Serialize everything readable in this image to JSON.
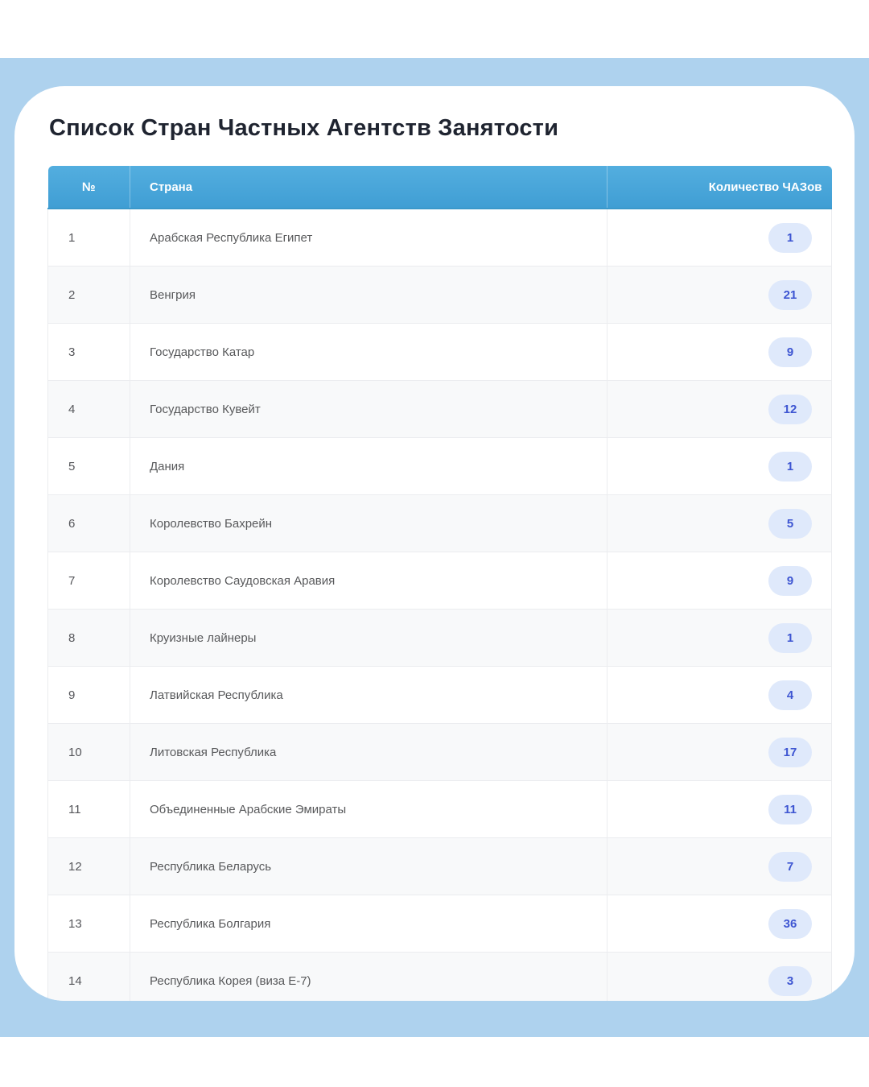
{
  "page": {
    "title": "Список Стран Частных Агентств Занятости"
  },
  "theme": {
    "panel_background": "#aed2ee",
    "card_background": "#ffffff",
    "header_blue_top": "#53aedf",
    "header_blue_bottom": "#409ed4",
    "header_text": "#ffffff",
    "row_text": "#58595b",
    "row_alt_background": "#f8f9fa",
    "badge_background": "#dfe9fb",
    "badge_text": "#3d55d2",
    "title_text": "#1f2430"
  },
  "table": {
    "columns": [
      {
        "key": "num",
        "label": "№"
      },
      {
        "key": "country",
        "label": "Страна"
      },
      {
        "key": "count",
        "label": "Количество ЧАЗов"
      }
    ],
    "rows": [
      {
        "num": "1",
        "country": "Арабская Республика Египет",
        "count": "1"
      },
      {
        "num": "2",
        "country": "Венгрия",
        "count": "21"
      },
      {
        "num": "3",
        "country": "Государство Катар",
        "count": "9"
      },
      {
        "num": "4",
        "country": "Государство Кувейт",
        "count": "12"
      },
      {
        "num": "5",
        "country": "Дания",
        "count": "1"
      },
      {
        "num": "6",
        "country": "Королевство Бахрейн",
        "count": "5"
      },
      {
        "num": "7",
        "country": "Королевство Саудовская Аравия",
        "count": "9"
      },
      {
        "num": "8",
        "country": "Круизные лайнеры",
        "count": "1"
      },
      {
        "num": "9",
        "country": "Латвийская Республика",
        "count": "4"
      },
      {
        "num": "10",
        "country": "Литовская Республика",
        "count": "17"
      },
      {
        "num": "11",
        "country": "Объединенные Арабские Эмираты",
        "count": "11"
      },
      {
        "num": "12",
        "country": "Республика Беларусь",
        "count": "7"
      },
      {
        "num": "13",
        "country": "Республика Болгария",
        "count": "36"
      },
      {
        "num": "14",
        "country": "Республика Корея (виза Е-7)",
        "count": "3"
      }
    ]
  }
}
